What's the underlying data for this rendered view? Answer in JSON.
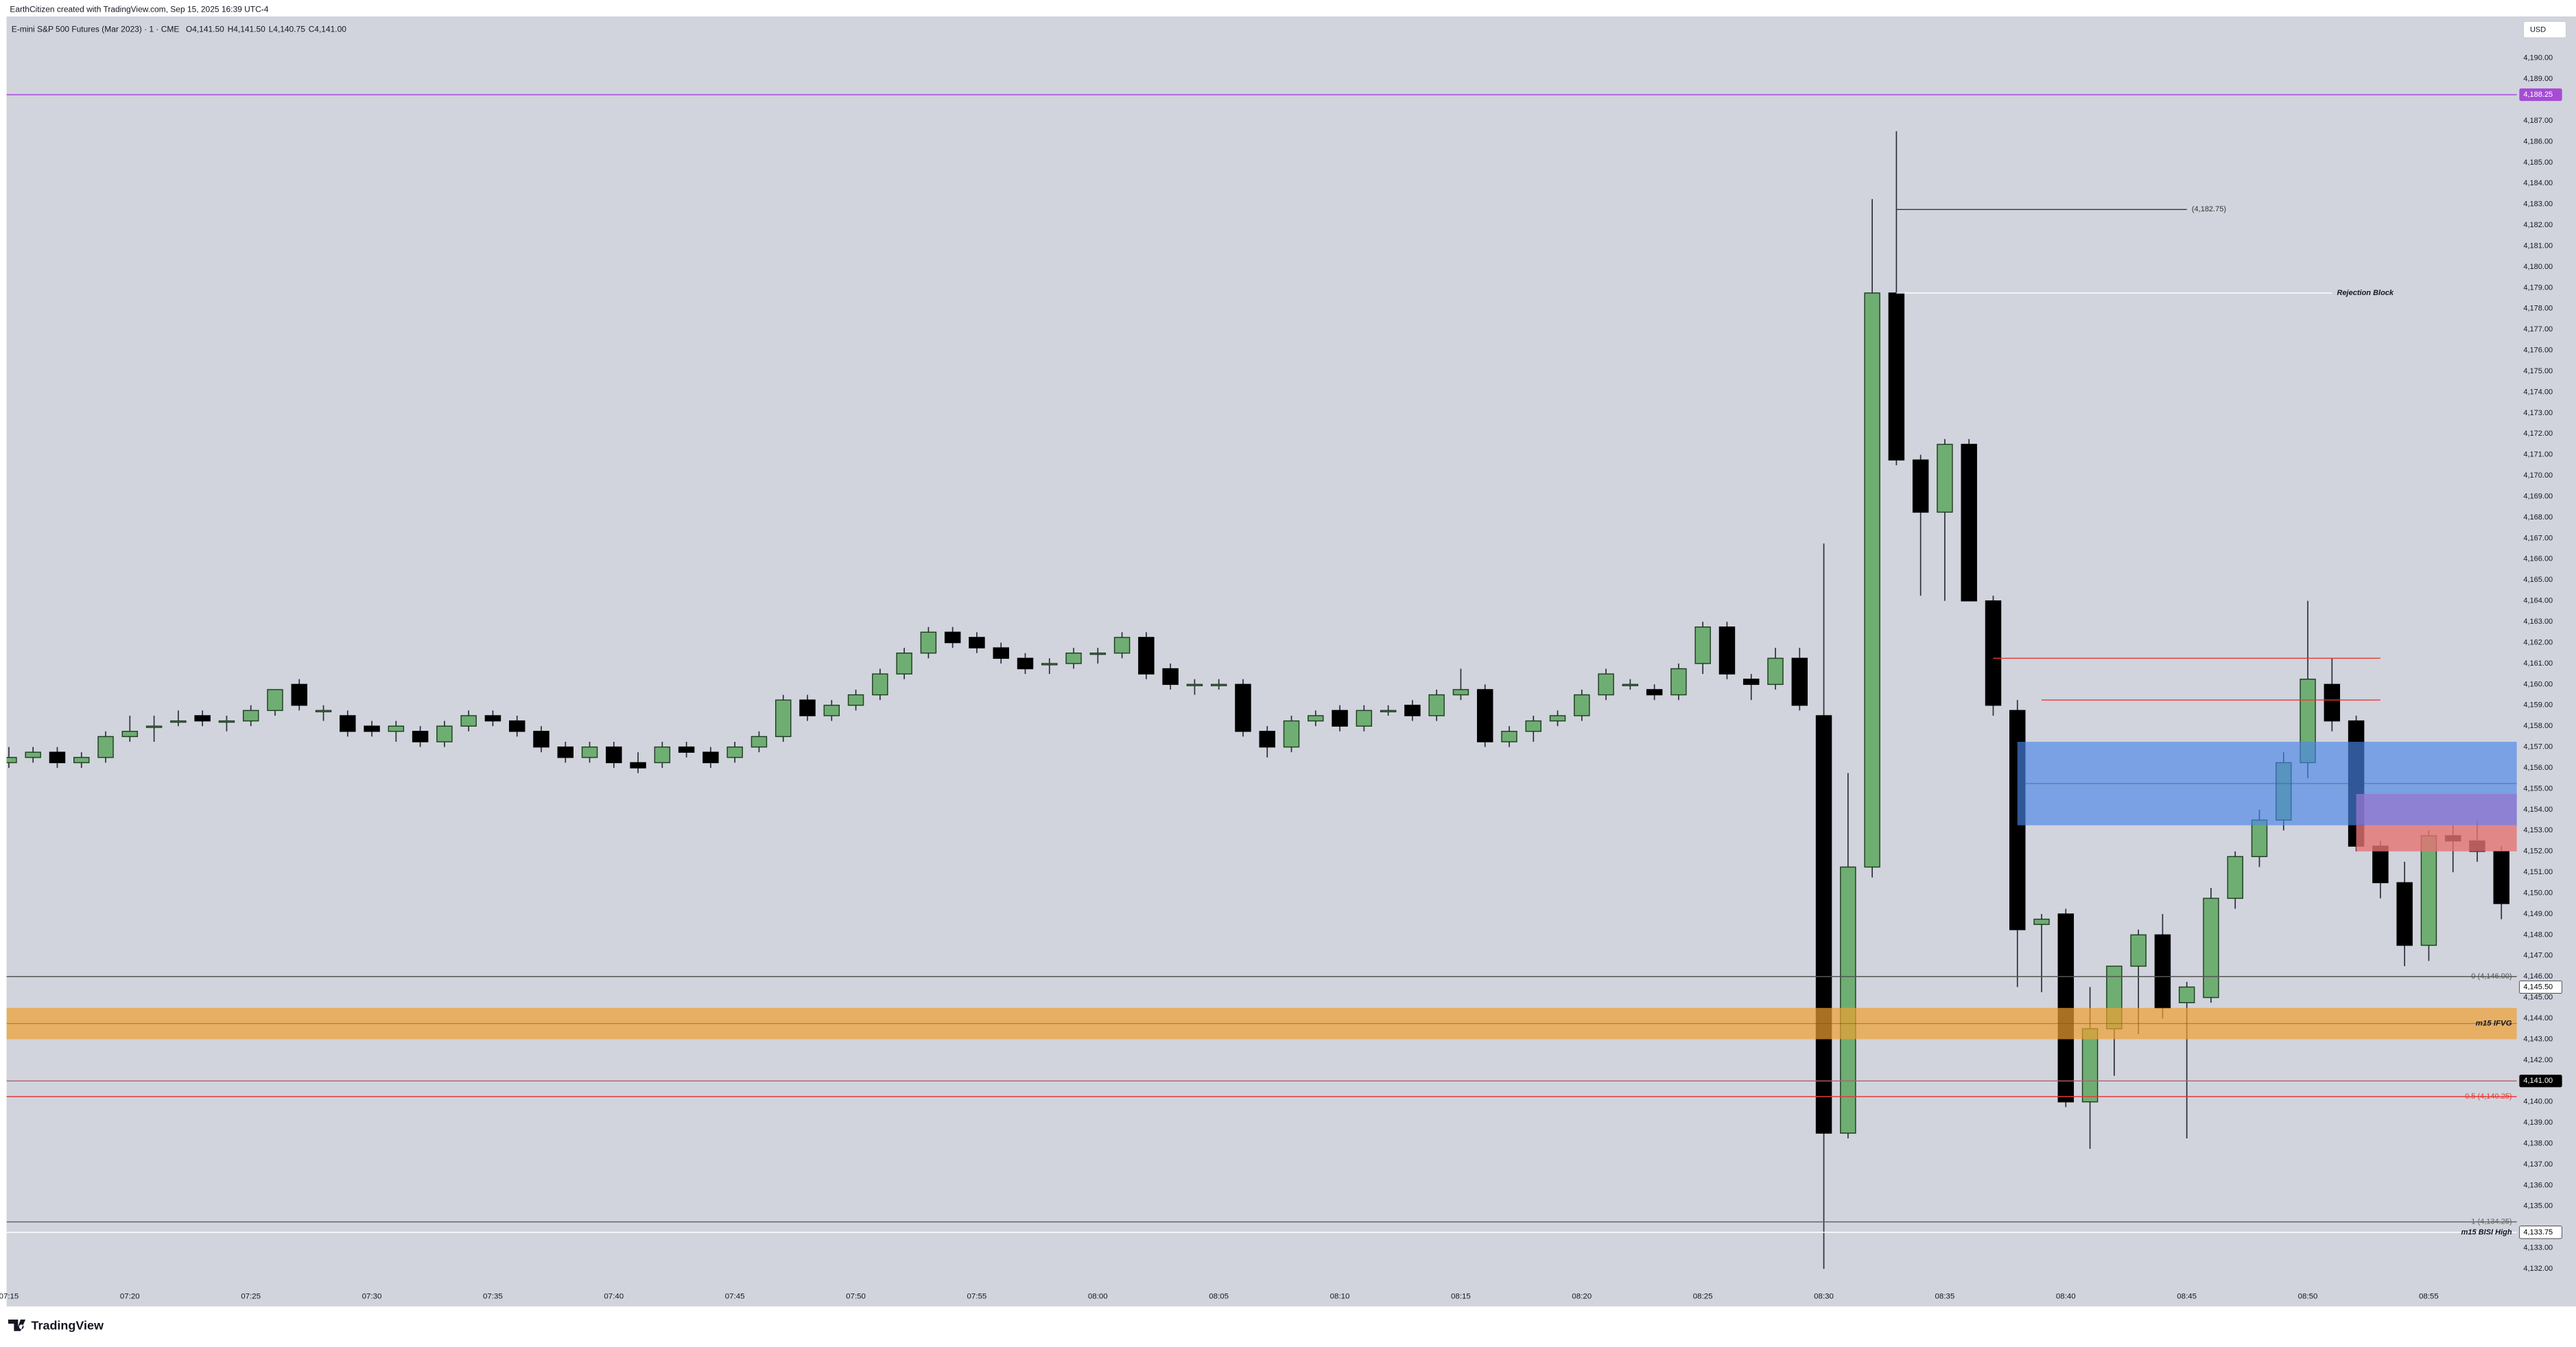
{
  "chart_data": {
    "type": "candlestick",
    "attribution": "EarthCitizen created with TradingView.com, Sep 15, 2025 16:39 UTC-4",
    "title": "E-mini S&P 500 Futures (Mar 2023) · 1 · CME",
    "readout": [
      {
        "value": 4141.5,
        "label": "O4,141.50"
      },
      {
        "value": 4141.5,
        "label": "H4,141.50"
      },
      {
        "value": 4140.75,
        "label": "L4,140.75"
      },
      {
        "value": 4141,
        "label": "C4,141.00"
      }
    ],
    "currency": "USD",
    "logo": "TradingView",
    "up_color": "#6fae72",
    "down_color": "#000000",
    "background": "#d1d4dc",
    "x": [
      "07:15",
      "07:16",
      "07:17",
      "07:18",
      "07:19",
      "07:20",
      "07:21",
      "07:22",
      "07:23",
      "07:24",
      "07:25",
      "07:26",
      "07:27",
      "07:28",
      "07:29",
      "07:30",
      "07:31",
      "07:32",
      "07:33",
      "07:34",
      "07:35",
      "07:36",
      "07:37",
      "07:38",
      "07:39",
      "07:40",
      "07:41",
      "07:42",
      "07:43",
      "07:44",
      "07:45",
      "07:46",
      "07:47",
      "07:48",
      "07:49",
      "07:50",
      "07:51",
      "07:52",
      "07:53",
      "07:54",
      "07:55",
      "07:56",
      "07:57",
      "07:58",
      "07:59",
      "08:00",
      "08:01",
      "08:02",
      "08:03",
      "08:04",
      "08:05",
      "08:06",
      "08:07",
      "08:08",
      "08:09",
      "08:10",
      "08:11",
      "08:12",
      "08:13",
      "08:14",
      "08:15",
      "08:16",
      "08:17",
      "08:18",
      "08:19",
      "08:20",
      "08:21",
      "08:22",
      "08:23",
      "08:24",
      "08:25",
      "08:26",
      "08:27",
      "08:28",
      "08:29",
      "08:30",
      "08:31",
      "08:32",
      "08:33",
      "08:34",
      "08:35",
      "08:36",
      "08:37",
      "08:38",
      "08:39",
      "08:40",
      "08:41",
      "08:42",
      "08:43",
      "08:44",
      "08:45",
      "08:46",
      "08:47",
      "08:48",
      "08:49",
      "08:50",
      "08:51",
      "08:52",
      "08:53",
      "08:54",
      "08:55",
      "08:56",
      "08:57",
      "08:58"
    ],
    "open": [
      4156.25,
      4156.5,
      4156.75,
      4156.25,
      4156.5,
      4157.5,
      4158,
      4158.25,
      4158.5,
      4158.25,
      4158.25,
      4158.75,
      4160,
      4158.75,
      4158.5,
      4158,
      4157.75,
      4157.75,
      4157.25,
      4158,
      4158.5,
      4158.25,
      4157.75,
      4157,
      4156.5,
      4157,
      4156.25,
      4156.25,
      4157,
      4156.75,
      4156.5,
      4157,
      4157.5,
      4159.25,
      4158.5,
      4159,
      4159.5,
      4160.5,
      4161.5,
      4162.5,
      4162.25,
      4161.75,
      4161.25,
      4161,
      4161,
      4161.5,
      4161.5,
      4162.25,
      4160.75,
      4160,
      4160,
      4160,
      4157.75,
      4157,
      4158.25,
      4158.75,
      4158,
      4158.75,
      4159,
      4158.5,
      4159.5,
      4159.75,
      4157.25,
      4157.75,
      4158.25,
      4158.5,
      4159.5,
      4160,
      4159.75,
      4159.5,
      4161,
      4162.75,
      4160.25,
      4160,
      4161.25,
      4158.5,
      4138.5,
      4151.25,
      4178.75,
      4170.75,
      4168.25,
      4171.5,
      4164,
      4158.75,
      4148.5,
      4149,
      4140,
      4143.5,
      4146.5,
      4148,
      4144.75,
      4145,
      4149.75,
      4151.75,
      4153.5,
      4156.25,
      4160,
      4158.25,
      4152.25,
      4150.5,
      4147.5,
      4152.75,
      4152.5,
      4152
    ],
    "high": [
      4157,
      4157,
      4157,
      4156.75,
      4157.75,
      4158.5,
      4158.5,
      4158.75,
      4158.75,
      4158.5,
      4159,
      4159.75,
      4160.25,
      4159,
      4158.75,
      4158.25,
      4158.25,
      4158,
      4158.25,
      4158.75,
      4158.75,
      4158.5,
      4158,
      4157.25,
      4157.25,
      4157.25,
      4156.75,
      4157.25,
      4157.25,
      4157,
      4157.25,
      4157.75,
      4159.5,
      4159.5,
      4159.25,
      4159.75,
      4160.75,
      4161.75,
      4162.75,
      4162.75,
      4162.5,
      4162,
      4161.5,
      4161.25,
      4161.75,
      4161.75,
      4162.5,
      4162.5,
      4161,
      4160.25,
      4160.25,
      4160.25,
      4158,
      4158.5,
      4158.75,
      4159,
      4159,
      4159,
      4159.25,
      4159.75,
      4160.75,
      4160,
      4158,
      4158.5,
      4158.75,
      4159.75,
      4160.75,
      4160.25,
      4160,
      4161,
      4163,
      4163,
      4160.5,
      4161.75,
      4161.75,
      4166.75,
      4155.75,
      4183.25,
      4186.5,
      4171,
      4171.75,
      4171.75,
      4164.25,
      4159.25,
      4149,
      4149.25,
      4145.5,
      4146.5,
      4148.25,
      4149,
      4145.75,
      4150.25,
      4152,
      4154,
      4156.75,
      4164,
      4161.25,
      4158.5,
      4152.5,
      4151.5,
      4153,
      4153.25,
      4153.5,
      4152.25
    ],
    "low": [
      4156,
      4156.25,
      4156,
      4156,
      4156.25,
      4157.25,
      4157.25,
      4158,
      4158,
      4157.75,
      4158,
      4158.5,
      4158.75,
      4158.25,
      4157.5,
      4157.5,
      4157.25,
      4157,
      4157,
      4157.75,
      4158,
      4157.5,
      4156.75,
      4156.25,
      4156.25,
      4156,
      4155.75,
      4156,
      4156.5,
      4156,
      4156.25,
      4156.75,
      4157.25,
      4158.25,
      4158.25,
      4158.75,
      4159.25,
      4160.25,
      4161.25,
      4161.75,
      4161.5,
      4161,
      4160.5,
      4160.5,
      4160.75,
      4161,
      4161.25,
      4160.25,
      4159.75,
      4159.5,
      4159.75,
      4157.5,
      4156.5,
      4156.75,
      4158,
      4157.75,
      4157.75,
      4158.5,
      4158.25,
      4158.25,
      4159.25,
      4157,
      4157,
      4157.25,
      4158,
      4158.25,
      4159.25,
      4159.75,
      4159.25,
      4159.25,
      4160.5,
      4160.25,
      4159.25,
      4159.75,
      4158.75,
      4132,
      4138.25,
      4150.75,
      4170.5,
      4164.25,
      4164,
      4164,
      4158.5,
      4145.5,
      4145.25,
      4139.75,
      4137.75,
      4141.25,
      4143.25,
      4144,
      4138.25,
      4144.75,
      4149.25,
      4151.25,
      4153,
      4155.5,
      4157.75,
      4152,
      4149.75,
      4146.5,
      4146.75,
      4151,
      4151.5,
      4148.75
    ],
    "close": [
      4156.5,
      4156.75,
      4156.25,
      4156.5,
      4157.5,
      4157.75,
      4158,
      4158.25,
      4158.25,
      4158.25,
      4158.75,
      4159.75,
      4159,
      4158.75,
      4157.75,
      4157.75,
      4158,
      4157.25,
      4158,
      4158.5,
      4158.25,
      4157.75,
      4157,
      4156.5,
      4157,
      4156.25,
      4156,
      4157,
      4156.75,
      4156.25,
      4157,
      4157.5,
      4159.25,
      4158.5,
      4159,
      4159.5,
      4160.5,
      4161.5,
      4162.5,
      4162,
      4161.75,
      4161.25,
      4160.75,
      4161,
      4161.5,
      4161.5,
      4162.25,
      4160.5,
      4160,
      4160,
      4160,
      4157.75,
      4157,
      4158.25,
      4158.5,
      4158,
      4158.75,
      4158.75,
      4158.5,
      4159.5,
      4159.75,
      4157.25,
      4157.75,
      4158.25,
      4158.5,
      4159.5,
      4160.5,
      4160,
      4159.5,
      4160.75,
      4162.75,
      4160.5,
      4160,
      4161.25,
      4159,
      4138.5,
      4151.25,
      4178.75,
      4170.75,
      4168.25,
      4171.5,
      4164,
      4159,
      4148.25,
      4148.75,
      4140,
      4143.5,
      4146.5,
      4148,
      4144.5,
      4145.5,
      4149.75,
      4151.75,
      4153.5,
      4156.25,
      4160.25,
      4158.25,
      4152.25,
      4150.5,
      4147.5,
      4152.75,
      4152.5,
      4152,
      4149.5
    ],
    "ylim": [
      4130.2,
      4192
    ],
    "yticks": [
      {
        "value": 4190,
        "label": "4,190.00"
      },
      {
        "value": 4189,
        "label": "4,189.00"
      },
      {
        "value": 4187,
        "label": "4,187.00"
      },
      {
        "value": 4186,
        "label": "4,186.00"
      },
      {
        "value": 4185,
        "label": "4,185.00"
      },
      {
        "value": 4184,
        "label": "4,184.00"
      },
      {
        "value": 4183,
        "label": "4,183.00"
      },
      {
        "value": 4182,
        "label": "4,182.00"
      },
      {
        "value": 4181,
        "label": "4,181.00"
      },
      {
        "value": 4180,
        "label": "4,180.00"
      },
      {
        "value": 4179,
        "label": "4,179.00"
      },
      {
        "value": 4178,
        "label": "4,178.00"
      },
      {
        "value": 4177,
        "label": "4,177.00"
      },
      {
        "value": 4176,
        "label": "4,176.00"
      },
      {
        "value": 4175,
        "label": "4,175.00"
      },
      {
        "value": 4174,
        "label": "4,174.00"
      },
      {
        "value": 4173,
        "label": "4,173.00"
      },
      {
        "value": 4172,
        "label": "4,172.00"
      },
      {
        "value": 4171,
        "label": "4,171.00"
      },
      {
        "value": 4170,
        "label": "4,170.00"
      },
      {
        "value": 4169,
        "label": "4,169.00"
      },
      {
        "value": 4168,
        "label": "4,168.00"
      },
      {
        "value": 4167,
        "label": "4,167.00"
      },
      {
        "value": 4166,
        "label": "4,166.00"
      },
      {
        "value": 4165,
        "label": "4,165.00"
      },
      {
        "value": 4164,
        "label": "4,164.00"
      },
      {
        "value": 4163,
        "label": "4,163.00"
      },
      {
        "value": 4162,
        "label": "4,162.00"
      },
      {
        "value": 4161,
        "label": "4,161.00"
      },
      {
        "value": 4160,
        "label": "4,160.00"
      },
      {
        "value": 4159,
        "label": "4,159.00"
      },
      {
        "value": 4158,
        "label": "4,158.00"
      },
      {
        "value": 4157,
        "label": "4,157.00"
      },
      {
        "value": 4156,
        "label": "4,156.00"
      },
      {
        "value": 4155,
        "label": "4,155.00"
      },
      {
        "value": 4154,
        "label": "4,154.00"
      },
      {
        "value": 4153,
        "label": "4,153.00"
      },
      {
        "value": 4152,
        "label": "4,152.00"
      },
      {
        "value": 4151,
        "label": "4,151.00"
      },
      {
        "value": 4150,
        "label": "4,150.00"
      },
      {
        "value": 4149,
        "label": "4,149.00"
      },
      {
        "value": 4148,
        "label": "4,148.00"
      },
      {
        "value": 4147,
        "label": "4,147.00"
      },
      {
        "value": 4146,
        "label": "4,146.00"
      },
      {
        "value": 4145,
        "label": "4,145.00"
      },
      {
        "value": 4144,
        "label": "4,144.00"
      },
      {
        "value": 4143,
        "label": "4,143.00"
      },
      {
        "value": 4142,
        "label": "4,142.00"
      },
      {
        "value": 4140,
        "label": "4,140.00"
      },
      {
        "value": 4139,
        "label": "4,139.00"
      },
      {
        "value": 4138,
        "label": "4,138.00"
      },
      {
        "value": 4137,
        "label": "4,137.00"
      },
      {
        "value": 4136,
        "label": "4,136.00"
      },
      {
        "value": 4135,
        "label": "4,135.00"
      },
      {
        "value": 4133,
        "label": "4,133.00"
      },
      {
        "value": 4132,
        "label": "4,132.00"
      }
    ],
    "xticks": [
      "07:15",
      "07:20",
      "07:25",
      "07:30",
      "07:35",
      "07:40",
      "07:45",
      "07:50",
      "07:55",
      "08:00",
      "08:05",
      "08:10",
      "08:15",
      "08:20",
      "08:25",
      "08:30",
      "08:35",
      "08:40",
      "08:45",
      "08:50",
      "08:55"
    ],
    "zones": [
      {
        "top": 4157.25,
        "bottom": 4153.25,
        "start": "08:38",
        "color": "#4a86e8",
        "opacity": 0.65,
        "midline": 4155.25
      },
      {
        "top": 4154.75,
        "bottom": 4153.25,
        "start": "08:52",
        "color": "#9575cd",
        "opacity": 0.75
      },
      {
        "top": 4153.25,
        "bottom": 4152,
        "start": "08:52",
        "color": "#e57373",
        "opacity": 0.8
      },
      {
        "top": 4144.5,
        "bottom": 4143,
        "color": "#f0a030",
        "opacity": 0.7,
        "midline": 4143.75,
        "label": "m15 IFVG"
      }
    ],
    "lines": [
      {
        "price": 4188.25,
        "color": "#a64bd6",
        "axis_label": "4,188.25",
        "axis_bg": "#a64bd6",
        "axis_fg": "#ffffff"
      },
      {
        "price": 4182.75,
        "start": "08:33",
        "end": "08:45",
        "color": "#333333",
        "label": "(4,182.75)"
      },
      {
        "price": 4178.75,
        "start": "08:33",
        "end": "08:51",
        "color": "#ffffff",
        "label": "Rejection Block",
        "bold": true
      },
      {
        "price": 4161.25,
        "start": "08:37",
        "end": "08:53",
        "color": "#e53935"
      },
      {
        "price": 4159.25,
        "start": "08:39",
        "end": "08:53",
        "color": "#e53935"
      },
      {
        "price": 4146,
        "color": "#555555",
        "label": "0 (4,146.00)"
      },
      {
        "price": 4145.5,
        "axis_label": "4,145.50",
        "axis_bg": "#ffffff",
        "axis_fg": "#000000"
      },
      {
        "price": 4141,
        "color": "#b06070",
        "axis_label": "4,141.00",
        "axis_bg": "#000000",
        "axis_fg": "#ffffff"
      },
      {
        "price": 4140.25,
        "color": "#e53935",
        "label": "0.5 (4,140.25)"
      },
      {
        "price": 4134.25,
        "color": "#666666",
        "label": "1 (4,134.25)"
      },
      {
        "price": 4133.75,
        "color": "#ffffff",
        "label": "m15 BISI High",
        "bold": true,
        "axis_label": "4,133.75",
        "axis_bg": "#ffffff",
        "axis_fg": "#000000"
      }
    ]
  }
}
